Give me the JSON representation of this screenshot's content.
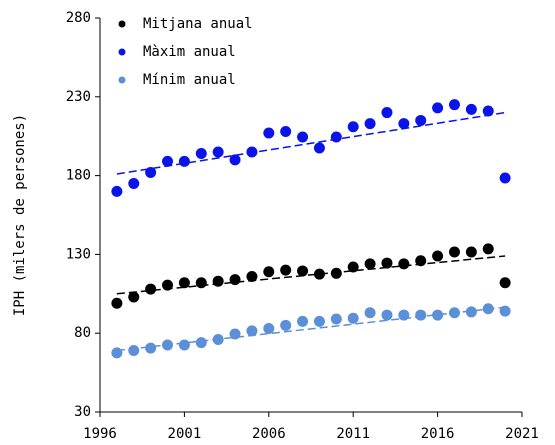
{
  "chart_data": {
    "type": "scatter",
    "y_label": "IPH (milers de persones)",
    "x": [
      1997,
      1998,
      1999,
      2000,
      2001,
      2002,
      2003,
      2004,
      2005,
      2006,
      2007,
      2008,
      2009,
      2010,
      2011,
      2012,
      2013,
      2014,
      2015,
      2016,
      2017,
      2018,
      2019,
      2020
    ],
    "xlim": [
      1996,
      2021
    ],
    "xticks": [
      1996,
      2001,
      2006,
      2011,
      2016,
      2021
    ],
    "ylim": [
      30,
      280
    ],
    "yticks": [
      30,
      80,
      130,
      180,
      230,
      280
    ],
    "legend": "upper left",
    "trend_x": [
      1997,
      2020
    ],
    "series": [
      {
        "name": "Mitjana anual",
        "color": "#000000",
        "values": [
          99,
          103,
          108,
          110.5,
          112,
          112,
          113,
          114,
          116,
          119,
          120,
          119.5,
          117.5,
          118,
          122,
          124,
          124.5,
          124,
          126,
          129,
          131.5,
          131.5,
          133.5,
          112
        ],
        "trend": [
          105,
          129
        ]
      },
      {
        "name": "Màxim anual",
        "color": "#0a14e8",
        "values": [
          170,
          175,
          182,
          189,
          189,
          194,
          195,
          190,
          195,
          207,
          208,
          204.5,
          197.5,
          204.5,
          211,
          213,
          220,
          213,
          215,
          223,
          225,
          222,
          221,
          178.5
        ],
        "trend": [
          181,
          220
        ]
      },
      {
        "name": "Mínim anual",
        "color": "#5b8fd8",
        "values": [
          67.5,
          69,
          70.5,
          72.5,
          72.5,
          74,
          76,
          79.5,
          81.5,
          83,
          85,
          87.5,
          87.5,
          89,
          89.5,
          93,
          91.5,
          91.5,
          91.5,
          91.5,
          93,
          93.5,
          95.5,
          94
        ],
        "trend": [
          69,
          96.5
        ]
      }
    ]
  }
}
